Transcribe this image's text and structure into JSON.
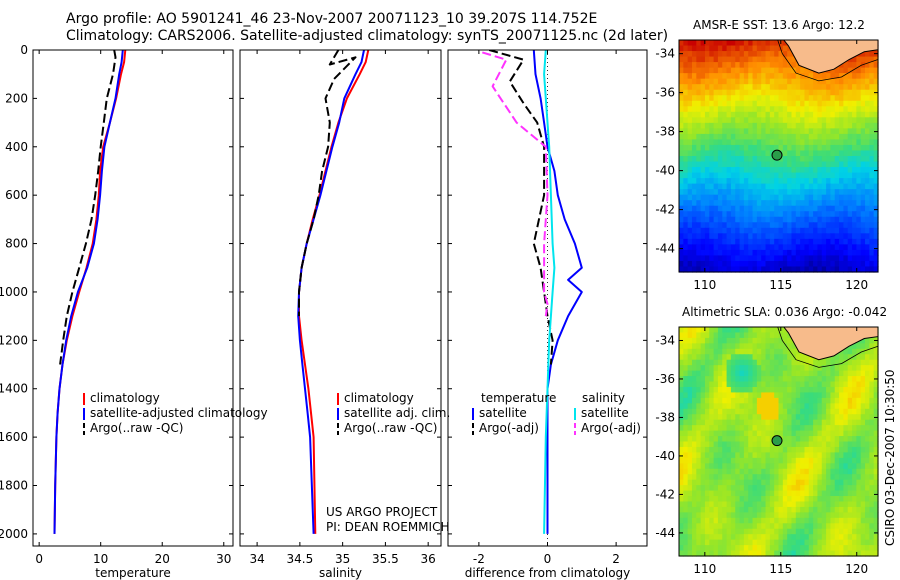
{
  "header": {
    "line1": "Argo profile: AO 5901241_46 23-Nov-2007 20071123_10 39.207S 114.752E",
    "line2": "Climatology: CARS2006. Satellite-adjusted climatology: synTS_20071125.nc (2d later)"
  },
  "credit": {
    "line1": "US ARGO PROJECT",
    "line2": "PI: DEAN ROEMMICH"
  },
  "footer_stamp": "CSIRO 03-Dec-2007 10:30:50",
  "colors": {
    "climatology": "#ff0000",
    "satellite": "#0000ff",
    "argo": "#000000",
    "sal_satellite": "#00e5ee",
    "sal_argo": "#ff33ff",
    "land": "#f7bb8b"
  },
  "chart_data": [
    {
      "type": "line",
      "xlabel": "temperature",
      "xlim": [
        -1,
        31.5
      ],
      "ylim": [
        2050,
        0
      ],
      "xticks": [
        0,
        10,
        20,
        30
      ],
      "yticks": [
        0,
        200,
        400,
        600,
        800,
        1000,
        1200,
        1400,
        1600,
        1800,
        2000
      ],
      "legend": [
        "climatology",
        "satellite-adjusted climatology",
        "Argo(..raw -QC)"
      ],
      "series": [
        {
          "name": "climatology",
          "color": "#ff0000",
          "x": [
            14.0,
            13.8,
            13.3,
            12.5,
            11.5,
            10.4,
            9.9,
            9.7,
            9.3,
            8.7,
            7.7,
            6.5,
            5.4,
            4.5,
            3.8,
            3.3,
            3.0,
            2.8,
            2.6,
            2.5
          ],
          "y": [
            0,
            50,
            100,
            200,
            300,
            400,
            500,
            600,
            700,
            800,
            900,
            1000,
            1100,
            1200,
            1300,
            1400,
            1500,
            1600,
            1800,
            2000
          ]
        },
        {
          "name": "satellite-adjusted climatology",
          "color": "#0000ff",
          "x": [
            13.6,
            13.4,
            13.0,
            12.4,
            11.5,
            10.6,
            10.2,
            9.9,
            9.5,
            8.9,
            7.8,
            6.3,
            5.2,
            4.4,
            3.8,
            3.3,
            3.0,
            2.8,
            2.6,
            2.5
          ],
          "y": [
            0,
            50,
            100,
            200,
            300,
            400,
            500,
            600,
            700,
            800,
            900,
            1000,
            1100,
            1200,
            1300,
            1400,
            1500,
            1600,
            1800,
            2000
          ]
        },
        {
          "name": "Argo(..raw -QC)",
          "color": "#000000",
          "x": [
            12.2,
            12.4,
            12.0,
            11.0,
            10.5,
            10.0,
            9.6,
            9.1,
            8.5,
            7.6,
            6.5,
            5.4,
            4.5,
            3.9,
            3.4
          ],
          "y": [
            0,
            30,
            100,
            200,
            300,
            400,
            500,
            600,
            700,
            800,
            900,
            1000,
            1100,
            1200,
            1300
          ]
        }
      ]
    },
    {
      "type": "line",
      "xlabel": "salinity",
      "xlim": [
        33.8,
        36.15
      ],
      "ylim": [
        2050,
        0
      ],
      "xticks": [
        34,
        34.5,
        35,
        35.5,
        36
      ],
      "legend": [
        "climatology",
        "satellite adj. clim.",
        "Argo(..raw -QC)"
      ],
      "series": [
        {
          "name": "climatology",
          "color": "#ff0000",
          "x": [
            35.3,
            35.27,
            35.2,
            35.05,
            34.95,
            34.87,
            34.8,
            34.73,
            34.65,
            34.58,
            34.52,
            34.49,
            34.49,
            34.52,
            34.56,
            34.6,
            34.63,
            34.66,
            34.68
          ],
          "y": [
            0,
            50,
            100,
            200,
            300,
            400,
            500,
            600,
            700,
            800,
            900,
            1000,
            1100,
            1200,
            1300,
            1400,
            1500,
            1600,
            2000
          ]
        },
        {
          "name": "satellite adj. clim.",
          "color": "#0000ff",
          "x": [
            35.25,
            35.22,
            35.15,
            35.02,
            34.96,
            34.88,
            34.81,
            34.74,
            34.66,
            34.58,
            34.52,
            34.49,
            34.48,
            34.5,
            34.53,
            34.56,
            34.59,
            34.62,
            34.66
          ],
          "y": [
            0,
            50,
            100,
            200,
            300,
            400,
            500,
            600,
            700,
            800,
            900,
            1000,
            1100,
            1200,
            1300,
            1400,
            1500,
            1600,
            2000
          ]
        },
        {
          "name": "Argo(..raw -QC)",
          "color": "#000000",
          "x": [
            34.95,
            34.85,
            35.15,
            34.9,
            34.8,
            34.85,
            34.83,
            34.76,
            34.72,
            34.66,
            34.58,
            34.52,
            34.49,
            34.49
          ],
          "y": [
            0,
            60,
            30,
            120,
            200,
            300,
            400,
            500,
            600,
            700,
            800,
            900,
            1000,
            1100
          ]
        }
      ]
    },
    {
      "type": "line",
      "xlabel": "difference from climatology",
      "xlim": [
        -2.9,
        2.9
      ],
      "ylim": [
        2050,
        0
      ],
      "xticks": [
        -2,
        0,
        2
      ],
      "legend": [
        "temperature",
        "satellite",
        "Argo(-adj)",
        "salinity",
        "satellite",
        "Argo(-adj)"
      ],
      "series": [
        {
          "name": "temperature satellite",
          "color": "#0000ff",
          "x": [
            -0.4,
            -0.35,
            -0.2,
            -0.1,
            0.0,
            0.2,
            0.3,
            0.5,
            0.8,
            1.0,
            0.6,
            1.0,
            0.6,
            0.3,
            0.1,
            0.0,
            0.0,
            0.0
          ],
          "y": [
            0,
            100,
            200,
            300,
            400,
            500,
            600,
            700,
            800,
            900,
            950,
            1000,
            1100,
            1200,
            1300,
            1400,
            1600,
            2000
          ]
        },
        {
          "name": "temperature Argo(-adj)",
          "color": "#000000",
          "x": [
            -1.7,
            -0.7,
            -1.1,
            -0.7,
            -0.3,
            -0.1,
            -0.1,
            -0.4,
            -0.2,
            -0.1,
            0.0,
            0.15,
            0.1
          ],
          "y": [
            0,
            40,
            130,
            220,
            300,
            400,
            600,
            800,
            900,
            1000,
            1100,
            1200,
            1300
          ]
        },
        {
          "name": "salinity satellite",
          "color": "#00e5ee",
          "x": [
            -0.05,
            -0.1,
            -0.05,
            0.05,
            0.1,
            0.15,
            0.2,
            0.15,
            0.05,
            0.0,
            -0.05,
            -0.1
          ],
          "y": [
            0,
            100,
            200,
            400,
            600,
            800,
            900,
            1000,
            1200,
            1400,
            1600,
            2000
          ]
        },
        {
          "name": "salinity Argo(-adj)",
          "color": "#ff33ff",
          "x": [
            -1.9,
            -1.2,
            -1.6,
            -0.9,
            -0.05,
            0.0,
            -0.1,
            -0.1,
            0.0,
            -0.05
          ],
          "y": [
            10,
            40,
            150,
            300,
            400,
            600,
            800,
            1000,
            1050,
            1100
          ]
        }
      ]
    },
    {
      "type": "heatmap",
      "title": "AMSR-E SST: 13.6 Argo: 12.2",
      "xlim": [
        108.3,
        121.4
      ],
      "ylim": [
        -45.2,
        -33.3
      ],
      "xticks": [
        110,
        115,
        120
      ],
      "yticks": [
        -34,
        -36,
        -38,
        -40,
        -42,
        -44
      ],
      "argo_position": {
        "lon": 114.752,
        "lat": -39.207
      }
    },
    {
      "type": "heatmap",
      "title": "Altimetric SLA: 0.036 Argo: -0.042",
      "xlim": [
        108.3,
        121.4
      ],
      "ylim": [
        -45.2,
        -33.3
      ],
      "xticks": [
        110,
        115,
        120
      ],
      "yticks": [
        -34,
        -36,
        -38,
        -40,
        -42,
        -44
      ],
      "argo_position": {
        "lon": 114.752,
        "lat": -39.207
      }
    }
  ]
}
